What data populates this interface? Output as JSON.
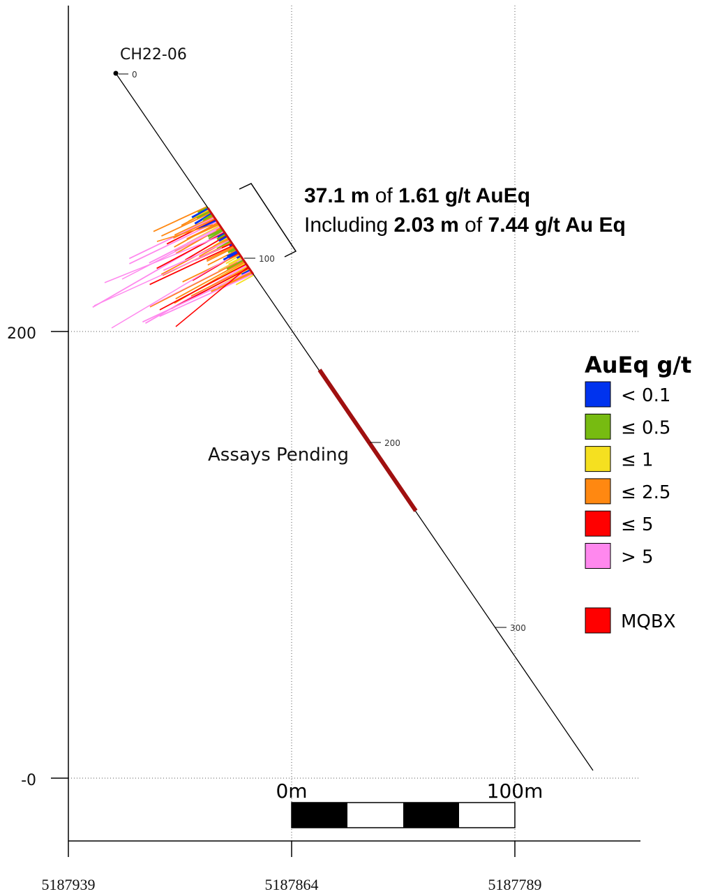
{
  "hole": {
    "name": "CH22-06",
    "depth_labels": [
      "0",
      "100",
      "200",
      "300"
    ]
  },
  "annotation": {
    "line1": {
      "value1": "37.1 m",
      "of": " of ",
      "value2": "1.61 g/t AuEq"
    },
    "line2": {
      "prefix": "Including ",
      "value1": "2.03 m",
      "of": " of ",
      "value2": "7.44 g/t Au Eq"
    }
  },
  "pending_label": "Assays Pending",
  "axes": {
    "y_ticks": [
      "200",
      "-0"
    ],
    "x_ticks": [
      "5187939",
      "5187864",
      "5187789"
    ]
  },
  "scale_bar": {
    "left_label": "0m",
    "right_label": "100m"
  },
  "legend": {
    "title": "AuEq g/t",
    "items": [
      {
        "label": "< 0.1",
        "color": "#0033ee"
      },
      {
        "label": "≤ 0.5",
        "color": "#77bb11"
      },
      {
        "label": "≤ 1",
        "color": "#f5e020"
      },
      {
        "label": "≤ 2.5",
        "color": "#ff8811"
      },
      {
        "label": "≤ 5",
        "color": "#ff0000"
      },
      {
        "label": "> 5",
        "color": "#ff88ee"
      }
    ],
    "mqbx": {
      "label": "MQBX",
      "color": "#ff0000"
    }
  },
  "colors": {
    "pending_interval": "#a01010",
    "mqbx_trace": "#cc1111"
  }
}
